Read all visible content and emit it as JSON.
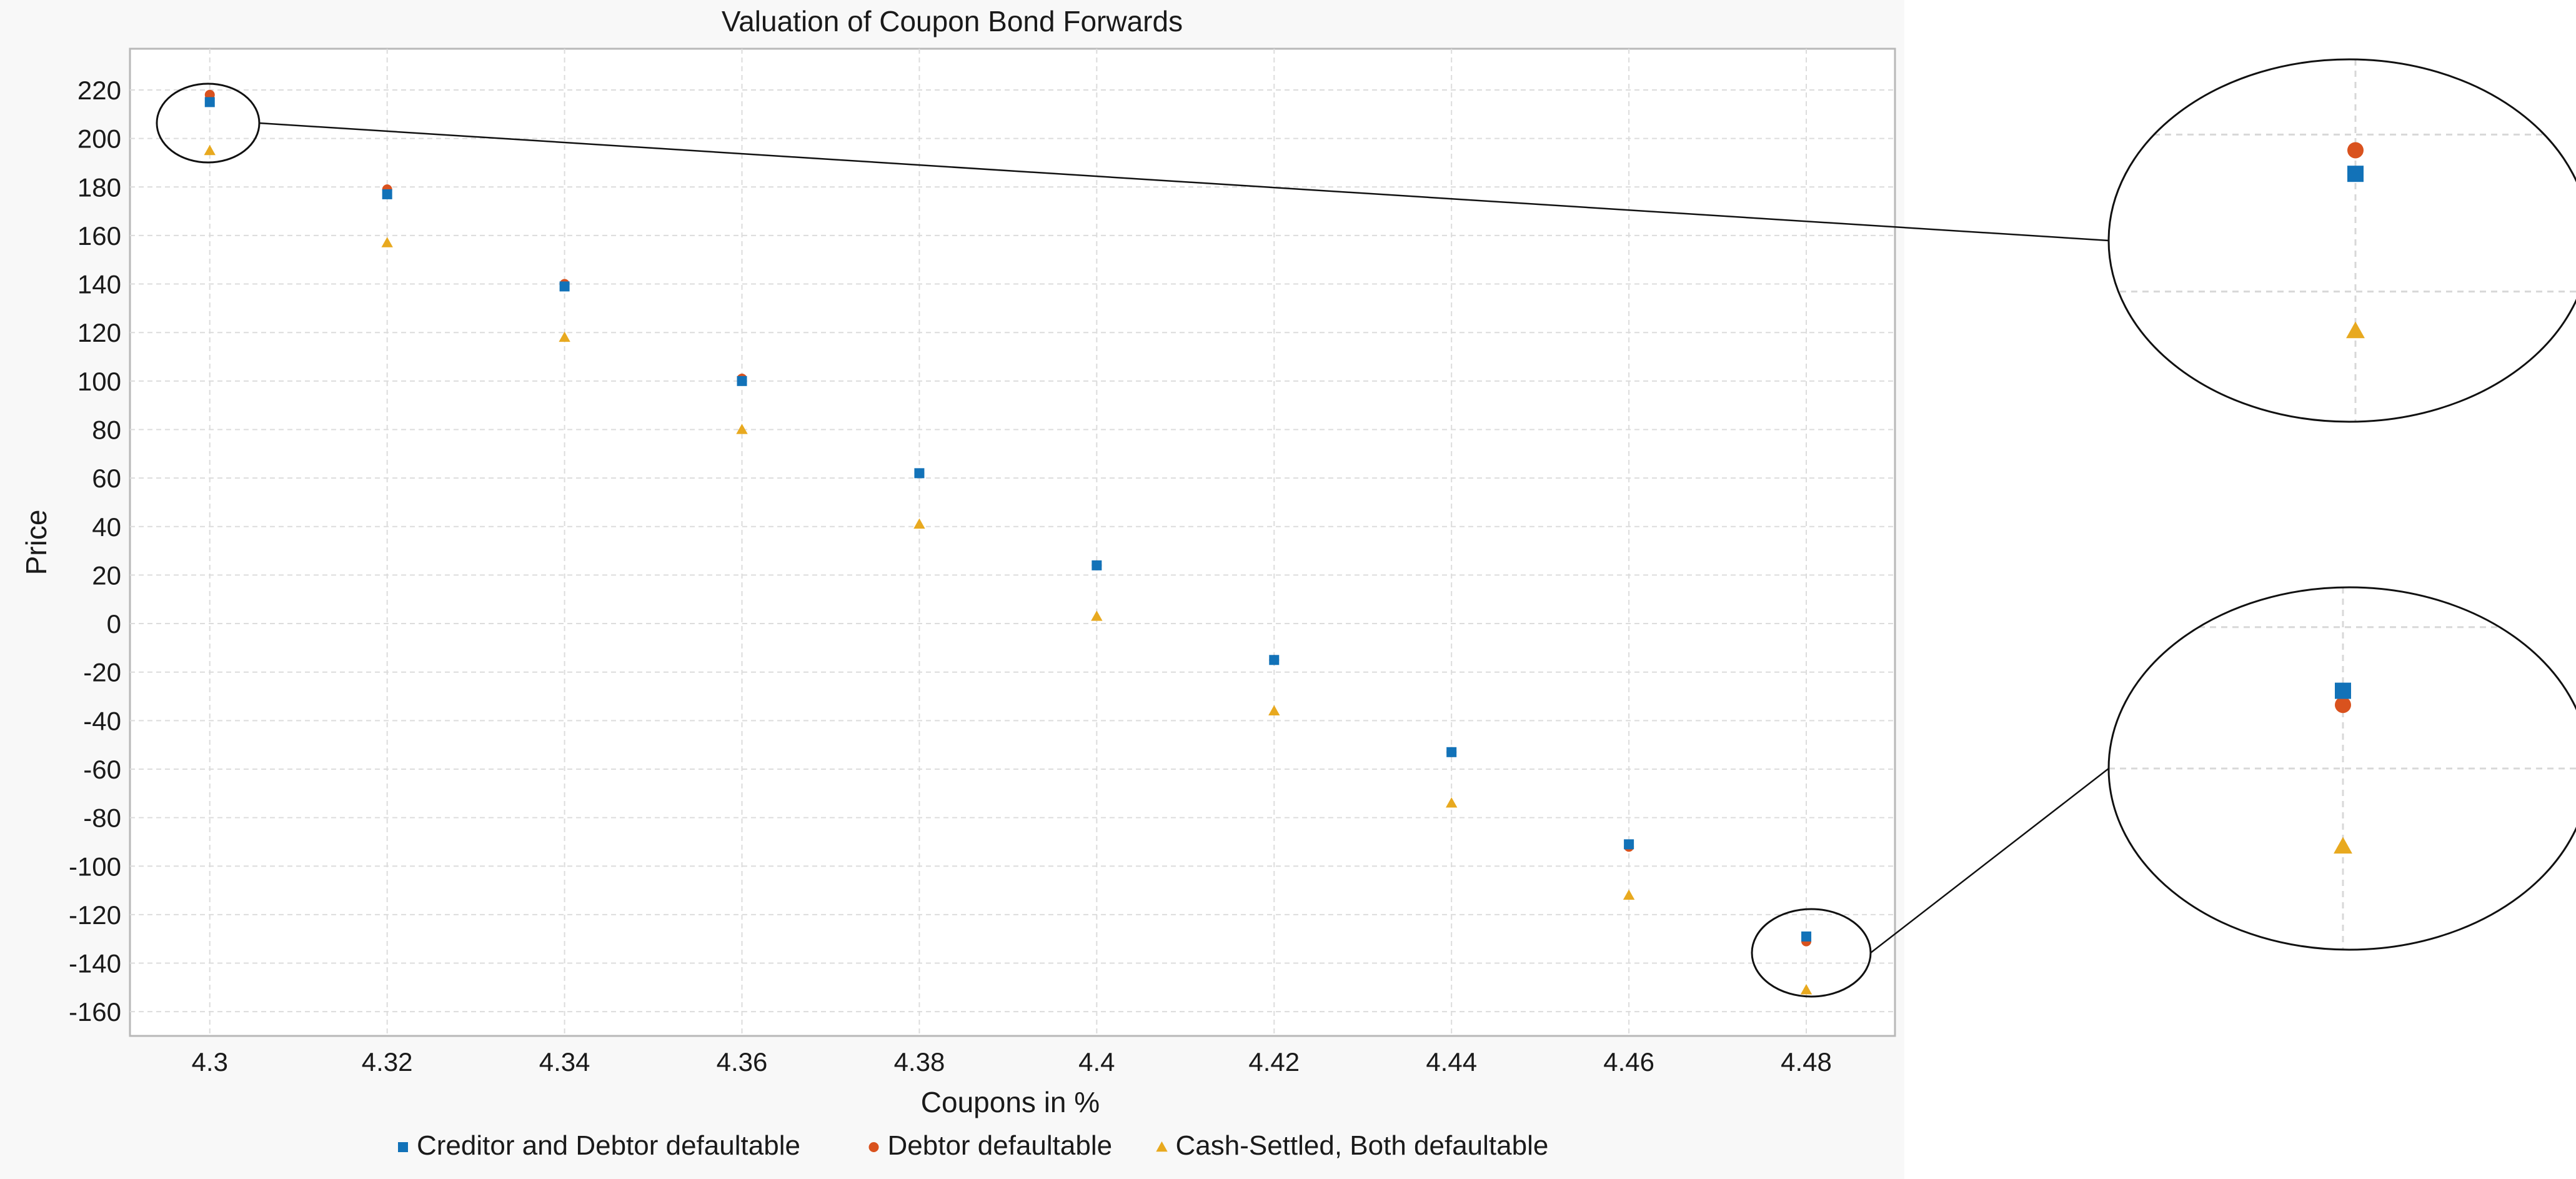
{
  "chart_data": {
    "type": "scatter",
    "title": "Valuation of Coupon Bond Forwards",
    "xlabel": "Coupons in %",
    "ylabel": "Price",
    "xlim": [
      4.291,
      4.49
    ],
    "ylim": [
      -170,
      237
    ],
    "xticks": [
      4.3,
      4.32,
      4.34,
      4.36,
      4.38,
      4.4,
      4.42,
      4.44,
      4.46,
      4.48
    ],
    "xtick_labels": [
      "4.3",
      "4.32",
      "4.34",
      "4.36",
      "4.38",
      "4.4",
      "4.42",
      "4.44",
      "4.46",
      "4.48"
    ],
    "yticks": [
      -160,
      -140,
      -120,
      -100,
      -80,
      -60,
      -40,
      -20,
      0,
      20,
      40,
      60,
      80,
      100,
      120,
      140,
      160,
      180,
      200,
      220
    ],
    "ytick_labels": [
      "-160",
      "-140",
      "-120",
      "-100",
      "-80",
      "-60",
      "-40",
      "-20",
      "0",
      "20",
      "40",
      "60",
      "80",
      "100",
      "120",
      "140",
      "160",
      "180",
      "200",
      "220"
    ],
    "grid": true,
    "legend_position": "bottom",
    "x": [
      4.3,
      4.32,
      4.34,
      4.36,
      4.38,
      4.4,
      4.42,
      4.44,
      4.46,
      4.48
    ],
    "series": [
      {
        "name": "Creditor and Debtor defaultable",
        "marker": "square",
        "color": "#1272b8",
        "values": [
          215,
          177,
          139,
          100,
          62,
          24,
          -15,
          -53,
          -91,
          -129
        ]
      },
      {
        "name": "Debtor defaultable",
        "marker": "circle",
        "color": "#d9521e",
        "values": [
          218,
          179,
          140,
          101,
          62,
          24,
          -15,
          -53,
          -92,
          -131
        ]
      },
      {
        "name": "Cash-Settled, Both defaultable",
        "marker": "triangle",
        "color": "#e8a91f",
        "values": [
          195,
          157,
          118,
          80,
          41,
          3,
          -36,
          -74,
          -112,
          -151
        ]
      }
    ],
    "zoom_insets": [
      {
        "x": 4.3,
        "series_values": [
          215,
          218,
          195
        ]
      },
      {
        "x": 4.48,
        "series_values": [
          -129,
          -131,
          -151
        ]
      }
    ]
  }
}
